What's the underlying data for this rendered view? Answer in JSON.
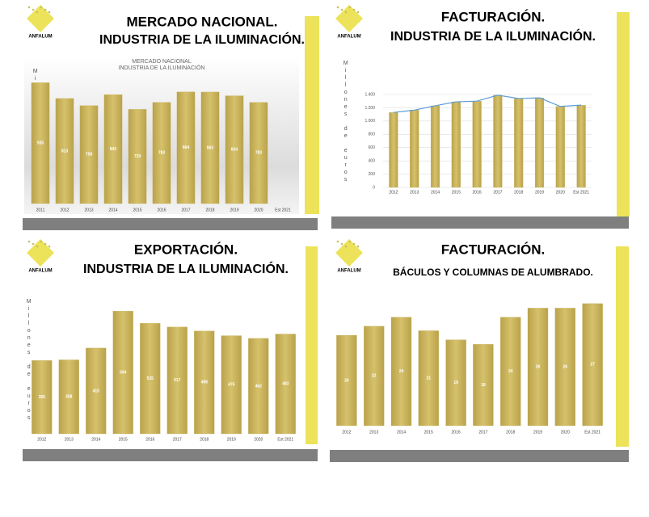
{
  "logo_text": "ANFALUM",
  "chart_data": [
    {
      "type": "bar",
      "title": "MERCADO NACIONAL.",
      "subtitle": "INDUSTRIA DE LA ILUMINACIÓN.",
      "inner_title": [
        "MERCADO NACIONAL",
        "INDUSTRIA DE LA ILUMINACIÓN"
      ],
      "y_label": "Millones de euros",
      "categories": [
        "2011",
        "2012",
        "2013",
        "2014",
        "2015",
        "2016",
        "2017",
        "2018",
        "2019",
        "2020",
        "Est 2021"
      ],
      "values": [
        935,
        813,
        758,
        843,
        729,
        783,
        864,
        863,
        834,
        783,
        null
      ],
      "ylim": [
        0,
        1000
      ],
      "color": "#c9b45c",
      "data_labels": true
    },
    {
      "type": "bar",
      "title": "FACTURACIÓN.",
      "subtitle": "INDUSTRIA DE LA ILUMINACIÓN.",
      "y_label": "Millones de euros",
      "categories": [
        "2012",
        "2013",
        "2014",
        "2015",
        "2016",
        "2017",
        "2018",
        "2019",
        "2020",
        "Est 2021"
      ],
      "values": [
        1130,
        1165,
        1230,
        1290,
        1300,
        1390,
        1340,
        1350,
        1220,
        1240
      ],
      "ylim": [
        0,
        1400
      ],
      "yticks": [
        0,
        200,
        400,
        600,
        800,
        {
          "value": 1000,
          "label": "1.000"
        },
        {
          "value": 1200,
          "label": "1.200"
        },
        {
          "value": 1400,
          "label": "1.400"
        }
      ],
      "grid": true,
      "line": true,
      "line_color": "#5b9bd5",
      "color": "#c9b45c",
      "data_labels": false
    },
    {
      "type": "bar",
      "title": "EXPORTACIÓN.",
      "subtitle": "INDUSTRIA DE LA ILUMINACIÓN.",
      "y_label": "Millones de euros",
      "categories": [
        "2012",
        "2013",
        "2014",
        "2015",
        "2016",
        "2017",
        "2018",
        "2019",
        "2020",
        "Est 2021"
      ],
      "values": [
        355,
        358,
        415,
        594,
        535,
        517,
        498,
        475,
        462,
        483
      ],
      "ylim": [
        0,
        700
      ],
      "color": "#c9b45c",
      "data_labels": true
    },
    {
      "type": "bar",
      "title": "FACTURACIÓN.",
      "subtitle": "BÁCULOS Y COLUMNAS DE ALUMBRADO.",
      "categories": [
        "2012",
        "2013",
        "2014",
        "2015",
        "2016",
        "2017",
        "2018",
        "2019",
        "2020",
        "Est 2021"
      ],
      "values": [
        20,
        22,
        24,
        21,
        19,
        18,
        24,
        26,
        26,
        27
      ],
      "ylim": [
        0,
        30
      ],
      "color": "#c9b45c",
      "data_labels": true
    }
  ]
}
